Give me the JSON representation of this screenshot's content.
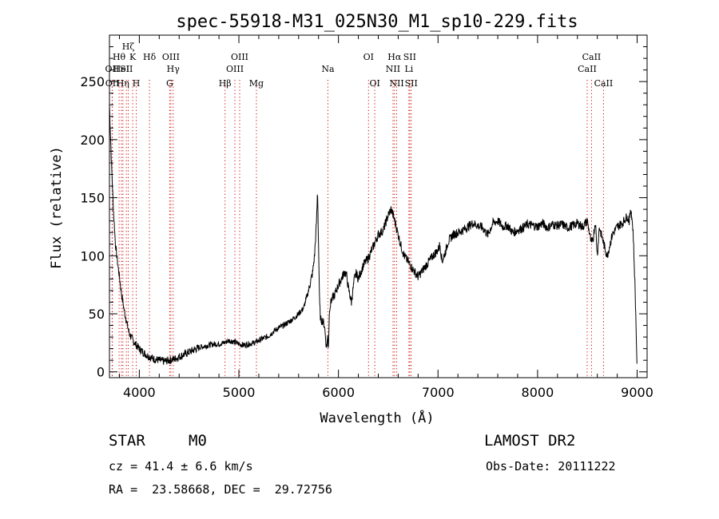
{
  "chart_data": {
    "type": "line",
    "title": "spec-55918-M31_025N30_M1_sp10-229.fits",
    "xlabel": "Wavelength (Å)",
    "ylabel": "Flux (relative)",
    "xlim": [
      3700,
      9100
    ],
    "ylim": [
      -5,
      290
    ],
    "xticks": [
      4000,
      5000,
      6000,
      7000,
      8000,
      9000
    ],
    "yticks": [
      0,
      50,
      100,
      150,
      200,
      250
    ],
    "grid": false,
    "series": [
      {
        "x": [
          3700,
          3720,
          3740,
          3760,
          3780,
          3800,
          3820,
          3850,
          3880,
          3900,
          3930,
          3960,
          4000,
          4050,
          4100,
          4150,
          4200,
          4250,
          4300,
          4350,
          4400,
          4450,
          4500,
          4550,
          4600,
          4650,
          4700,
          4750,
          4800,
          4850,
          4900,
          4950,
          5000,
          5050,
          5100,
          5150,
          5200,
          5250,
          5300,
          5350,
          5400,
          5450,
          5500,
          5550,
          5600,
          5650,
          5700,
          5720,
          5740,
          5760,
          5780,
          5790,
          5800,
          5810,
          5820,
          5840,
          5860,
          5880,
          5890,
          5900,
          5910,
          5930,
          5960,
          6000,
          6030,
          6060,
          6080,
          6100,
          6130,
          6160,
          6180,
          6200,
          6250,
          6300,
          6350,
          6400,
          6450,
          6500,
          6530,
          6560,
          6580,
          6600,
          6630,
          6660,
          6700,
          6750,
          6800,
          6850,
          6900,
          6950,
          7000,
          7020,
          7040,
          7060,
          7080,
          7100,
          7150,
          7200,
          7250,
          7300,
          7350,
          7400,
          7450,
          7500,
          7550,
          7600,
          7650,
          7700,
          7750,
          7800,
          7850,
          7900,
          7950,
          8000,
          8050,
          8100,
          8150,
          8200,
          8250,
          8300,
          8350,
          8400,
          8450,
          8500,
          8520,
          8540,
          8560,
          8580,
          8600,
          8620,
          8640,
          8660,
          8680,
          8700,
          8750,
          8800,
          8850,
          8900,
          8920,
          8940,
          8950,
          8960,
          8980,
          9000
        ],
        "y": [
          230,
          180,
          140,
          110,
          95,
          82,
          68,
          52,
          40,
          33,
          28,
          24,
          20,
          16,
          13,
          11,
          10,
          9,
          10,
          11,
          13,
          15,
          17,
          19,
          21,
          22,
          23,
          24,
          24,
          25,
          27,
          26,
          24,
          23,
          24,
          25,
          27,
          29,
          31,
          35,
          38,
          40,
          43,
          46,
          50,
          55,
          70,
          78,
          85,
          100,
          130,
          157,
          110,
          60,
          45,
          44,
          40,
          20,
          30,
          22,
          55,
          62,
          66,
          75,
          80,
          86,
          84,
          72,
          60,
          80,
          85,
          80,
          92,
          98,
          108,
          118,
          122,
          135,
          140,
          132,
          125,
          118,
          108,
          100,
          95,
          88,
          82,
          88,
          94,
          100,
          105,
          110,
          95,
          100,
          105,
          112,
          118,
          120,
          122,
          125,
          128,
          126,
          124,
          118,
          128,
          130,
          125,
          126,
          120,
          122,
          124,
          127,
          126,
          125,
          128,
          124,
          127,
          126,
          127,
          124,
          126,
          128,
          125,
          130,
          120,
          110,
          116,
          130,
          100,
          125,
          118,
          112,
          105,
          100,
          118,
          125,
          128,
          134,
          130,
          140,
          130,
          120,
          70,
          0
        ]
      }
    ],
    "lines": [
      {
        "name": "OII",
        "w": 3727,
        "row": 2
      },
      {
        "name": "OII",
        "w": 3729,
        "row": 3
      },
      {
        "name": "Hθ",
        "w": 3797,
        "row": 1
      },
      {
        "name": "HeI",
        "w": 3820,
        "row": 2
      },
      {
        "name": "Hη",
        "w": 3835,
        "row": 3
      },
      {
        "name": "SII",
        "w": 3870,
        "row": 2
      },
      {
        "name": "Hζ",
        "w": 3889,
        "row": 0
      },
      {
        "name": "K",
        "w": 3934,
        "row": 1
      },
      {
        "name": "H",
        "w": 3969,
        "row": 3
      },
      {
        "name": "Hδ",
        "w": 4102,
        "row": 1
      },
      {
        "name": "OIII",
        "w": 4317,
        "row": 1
      },
      {
        "name": "Hγ",
        "w": 4340,
        "row": 2
      },
      {
        "name": "G",
        "w": 4305,
        "row": 3
      },
      {
        "name": "Hβ",
        "w": 4861,
        "row": 3
      },
      {
        "name": "OIII",
        "w": 4960,
        "row": 2
      },
      {
        "name": "OIII",
        "w": 5008,
        "row": 1
      },
      {
        "name": "Mg",
        "w": 5176,
        "row": 3
      },
      {
        "name": "Na",
        "w": 5894,
        "row": 2
      },
      {
        "name": "OI",
        "w": 6302,
        "row": 1
      },
      {
        "name": "OI",
        "w": 6365,
        "row": 3
      },
      {
        "name": "NII",
        "w": 6548,
        "row": 2
      },
      {
        "name": "Hα",
        "w": 6563,
        "row": 1
      },
      {
        "name": "NII",
        "w": 6585,
        "row": 3
      },
      {
        "name": "SII",
        "w": 6716,
        "row": 1
      },
      {
        "name": "Li",
        "w": 6708,
        "row": 2
      },
      {
        "name": "SII",
        "w": 6731,
        "row": 3
      },
      {
        "name": "CaII",
        "w": 8498,
        "row": 2
      },
      {
        "name": "CaII",
        "w": 8542,
        "row": 1
      },
      {
        "name": "CaII",
        "w": 8662,
        "row": 3
      }
    ],
    "colors": {
      "spectrum": "#000000",
      "line_markers": "#d00000"
    }
  },
  "info": {
    "class_label": "STAR",
    "subclass_label": "M0",
    "survey_label": "LAMOST DR2",
    "cz": "cz = 41.4 ± 6.6 km/s",
    "obs_date": "Obs-Date: 20111222",
    "coords": "RA =  23.58668, DEC =  29.72756"
  }
}
